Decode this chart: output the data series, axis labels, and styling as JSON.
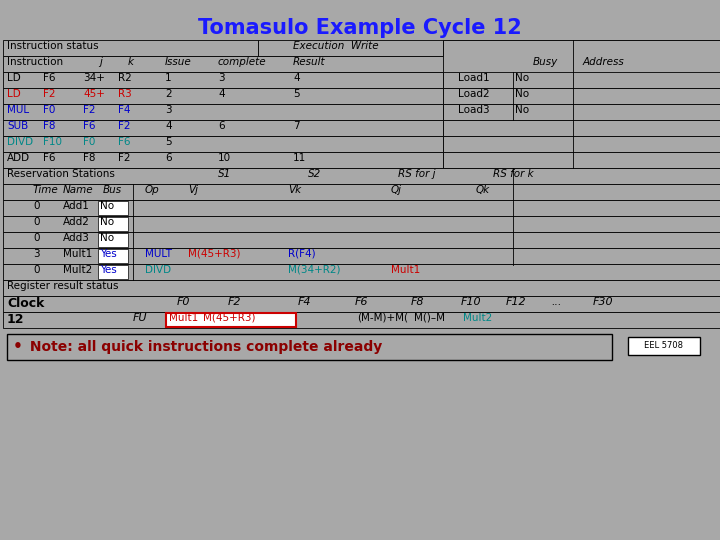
{
  "title": "Tomasulo Example Cycle 12",
  "bg_color": "#A8A8A8",
  "title_color": "#1a1aff",
  "black": "#000000",
  "red": "#cc0000",
  "blue": "#0000cc",
  "teal": "#008888",
  "dark_red": "#8B0000",
  "white": "#ffffff",
  "note_text": "  Note: all quick instructions complete already",
  "eel_text": "EEL 5708"
}
